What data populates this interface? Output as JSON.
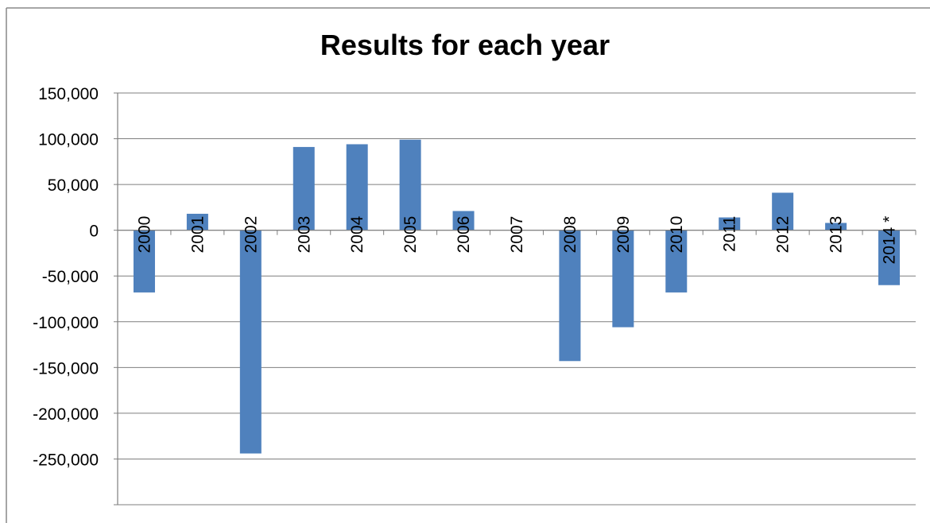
{
  "chart_data": {
    "type": "bar",
    "title": "Results for each year",
    "xlabel": "",
    "ylabel": "",
    "categories": [
      "2000",
      "2001",
      "2002",
      "2003",
      "2004",
      "2005",
      "2006",
      "2007",
      "2008",
      "2009",
      "2010",
      "2011",
      "2012",
      "2013",
      "2014 *"
    ],
    "values": [
      -68000,
      18000,
      -244000,
      91000,
      94000,
      99000,
      21000,
      0,
      -143000,
      -106000,
      -68000,
      14000,
      41000,
      8000,
      -60000
    ],
    "ylim": [
      -300000,
      150000
    ],
    "yticks": [
      150000,
      100000,
      50000,
      0,
      -50000,
      -100000,
      -150000,
      -200000,
      -250000
    ],
    "ytick_labels": [
      "150,000",
      "100,000",
      "50,000",
      "0",
      "-50,000",
      "-100,000",
      "-150,000",
      "-200,000",
      "-250,000"
    ],
    "grid": true,
    "legend": "none",
    "bar_color": "#4F81BD",
    "category_labels_position": "rotated above zero line"
  }
}
